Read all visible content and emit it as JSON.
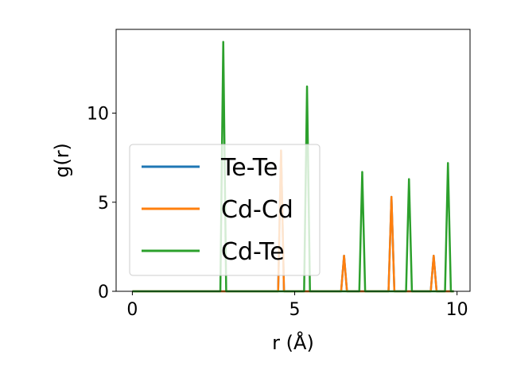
{
  "chart_data": {
    "type": "line",
    "title": "",
    "xlabel": "r (Å)",
    "ylabel": "g(r)",
    "xlim": [
      -0.5,
      10.4
    ],
    "ylim": [
      0,
      14.7
    ],
    "xticks": [
      0,
      5,
      10
    ],
    "yticks": [
      0,
      5,
      10
    ],
    "grid": false,
    "legend_position": "center-left",
    "series": [
      {
        "name": "Te-Te",
        "color": "#1f77b4",
        "peaks": [
          {
            "r": 4.58,
            "g": 7.9
          },
          {
            "r": 6.52,
            "g": 2.0
          },
          {
            "r": 7.98,
            "g": 5.3
          },
          {
            "r": 9.28,
            "g": 2.0
          }
        ]
      },
      {
        "name": "Cd-Cd",
        "color": "#ff7f0e",
        "peaks": [
          {
            "r": 4.58,
            "g": 7.9
          },
          {
            "r": 6.52,
            "g": 2.0
          },
          {
            "r": 7.98,
            "g": 5.3
          },
          {
            "r": 9.28,
            "g": 2.0
          }
        ]
      },
      {
        "name": "Cd-Te",
        "color": "#2ca02c",
        "peaks": [
          {
            "r": 2.8,
            "g": 14.0
          },
          {
            "r": 5.38,
            "g": 11.5
          },
          {
            "r": 7.08,
            "g": 6.7
          },
          {
            "r": 8.52,
            "g": 6.3
          },
          {
            "r": 9.72,
            "g": 7.2
          }
        ]
      }
    ]
  }
}
